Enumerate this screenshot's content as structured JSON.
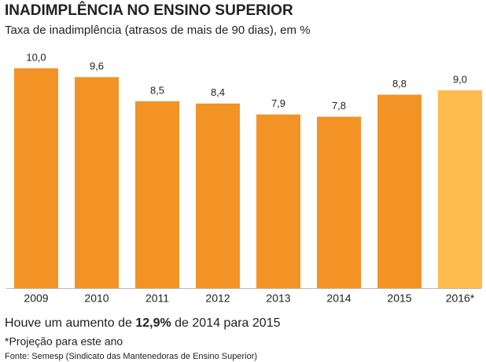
{
  "chart_data": {
    "type": "bar",
    "title": "INADIMPLÊNCIA NO ENSINO SUPERIOR",
    "subtitle": "Taxa de inadimplência (atrasos de mais de 90 dias), em %",
    "categories": [
      "2009",
      "2010",
      "2011",
      "2012",
      "2013",
      "2014",
      "2015",
      "2016*"
    ],
    "values": [
      10.0,
      9.6,
      8.5,
      8.4,
      7.9,
      7.8,
      8.8,
      9.0
    ],
    "value_labels": [
      "10,0",
      "9,6",
      "8,5",
      "8,4",
      "7,9",
      "7,8",
      "8,8",
      "9,0"
    ],
    "colors": [
      "#f39325",
      "#f39325",
      "#f39325",
      "#f39325",
      "#f39325",
      "#f39325",
      "#f39325",
      "#fdbb4e"
    ],
    "annotation": [
      "Houve um aumento de ",
      "12,9%",
      " de 2014 para 2015"
    ],
    "footnote": "*Projeção para este ano",
    "source": "Fonte: Semesp (Sindicato das Mantenedoras de Ensino Superior)"
  }
}
